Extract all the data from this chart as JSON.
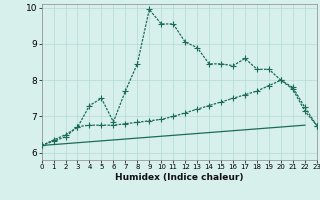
{
  "xlabel": "Humidex (Indice chaleur)",
  "xlim": [
    0,
    23
  ],
  "ylim": [
    5.8,
    10.1
  ],
  "background_color": "#d8f0eb",
  "grid_color": "#b8ddd8",
  "line_color": "#1a6b5a",
  "line_width": 0.9,
  "marker_size": 2.5,
  "series1_x": [
    0,
    1,
    2,
    3,
    4,
    5,
    6,
    7,
    8,
    9,
    10,
    11,
    12,
    13,
    14,
    15,
    16,
    17,
    18,
    19,
    20,
    21,
    22,
    23
  ],
  "series1_y": [
    6.2,
    6.35,
    6.5,
    6.7,
    7.3,
    7.5,
    6.85,
    7.7,
    8.45,
    9.95,
    9.55,
    9.55,
    9.05,
    8.9,
    8.45,
    8.45,
    8.4,
    8.6,
    8.3,
    8.3,
    8.0,
    7.75,
    7.15,
    6.75
  ],
  "series2_x": [
    0,
    1,
    2,
    3,
    4,
    5,
    6,
    7,
    8,
    9,
    10,
    11,
    12,
    13,
    14,
    15,
    16,
    17,
    18,
    19,
    20,
    21,
    22,
    23
  ],
  "series2_y": [
    6.2,
    6.32,
    6.44,
    6.72,
    6.76,
    6.76,
    6.76,
    6.8,
    6.84,
    6.88,
    6.92,
    7.0,
    7.1,
    7.2,
    7.3,
    7.4,
    7.5,
    7.6,
    7.7,
    7.85,
    8.0,
    7.8,
    7.25,
    6.75
  ],
  "series3_x": [
    0,
    22
  ],
  "series3_y": [
    6.2,
    6.76
  ],
  "yticks": [
    6,
    7,
    8,
    9,
    10
  ],
  "xticks": [
    0,
    1,
    2,
    3,
    4,
    5,
    6,
    7,
    8,
    9,
    10,
    11,
    12,
    13,
    14,
    15,
    16,
    17,
    18,
    19,
    20,
    21,
    22,
    23
  ]
}
